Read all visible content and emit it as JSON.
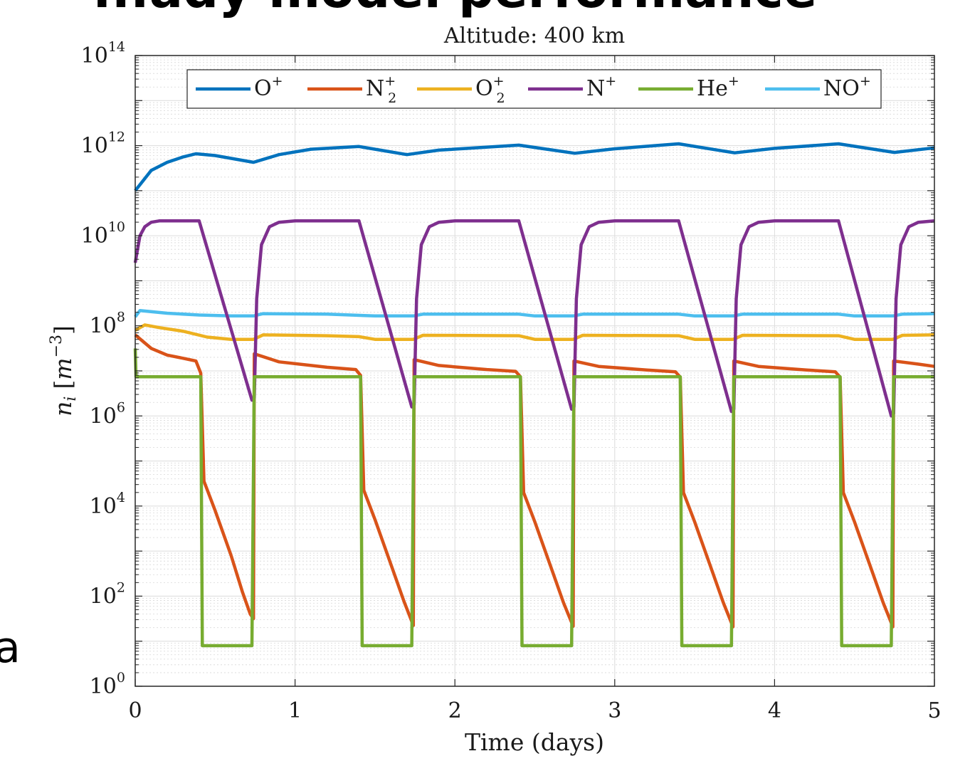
{
  "page": {
    "heading_fragment": "...ady model performance",
    "side_fragment": "a"
  },
  "chart_data": {
    "type": "line",
    "title": "Altitude: 400 km",
    "xlabel": "Time (days)",
    "ylabel": {
      "base": "n",
      "sub": "i",
      "unit_open": "[",
      "unit_base": "m",
      "unit_exp": "−3",
      "unit_close": "]"
    },
    "xlim": [
      0,
      5
    ],
    "ylim_log10": [
      0,
      14
    ],
    "yscale": "log",
    "grid": true,
    "minor_grid": true,
    "legend_position": "top",
    "x_ticks": [
      "0",
      "1",
      "2",
      "3",
      "4",
      "5"
    ],
    "y_ticks": [
      {
        "base": "10",
        "exp": "0"
      },
      {
        "base": "10",
        "exp": "2"
      },
      {
        "base": "10",
        "exp": "4"
      },
      {
        "base": "10",
        "exp": "6"
      },
      {
        "base": "10",
        "exp": "8"
      },
      {
        "base": "10",
        "exp": "10"
      },
      {
        "base": "10",
        "exp": "12"
      },
      {
        "base": "10",
        "exp": "14"
      }
    ],
    "series": [
      {
        "key": "Oplus",
        "color": "#0072BD",
        "label": {
          "base": "O",
          "sub": "",
          "sup": "+"
        },
        "points_log10": [
          [
            0,
            11
          ],
          [
            0.1,
            11.45
          ],
          [
            0.2,
            11.63
          ],
          [
            0.3,
            11.75
          ],
          [
            0.38,
            11.82
          ],
          [
            0.5,
            11.78
          ],
          [
            0.74,
            11.63
          ],
          [
            0.9,
            11.8
          ],
          [
            1.1,
            11.92
          ],
          [
            1.4,
            11.98
          ],
          [
            1.7,
            11.8
          ],
          [
            1.9,
            11.9
          ],
          [
            2.4,
            12.01
          ],
          [
            2.75,
            11.83
          ],
          [
            3.0,
            11.93
          ],
          [
            3.4,
            12.04
          ],
          [
            3.75,
            11.84
          ],
          [
            4.0,
            11.94
          ],
          [
            4.4,
            12.04
          ],
          [
            4.75,
            11.85
          ],
          [
            5,
            11.95
          ]
        ]
      },
      {
        "key": "N2plus",
        "color": "#D95319",
        "label": {
          "base": "N",
          "sub": "2",
          "sup": "+"
        },
        "points_log10": [
          [
            0,
            7.8
          ],
          [
            0.1,
            7.5
          ],
          [
            0.2,
            7.35
          ],
          [
            0.3,
            7.28
          ],
          [
            0.38,
            7.22
          ],
          [
            0.41,
            6.95
          ],
          [
            0.43,
            4.55
          ],
          [
            0.5,
            3.9
          ],
          [
            0.6,
            2.9
          ],
          [
            0.67,
            2.1
          ],
          [
            0.72,
            1.6
          ],
          [
            0.74,
            1.5
          ],
          [
            0.745,
            7.38
          ],
          [
            0.9,
            7.2
          ],
          [
            1.2,
            7.08
          ],
          [
            1.38,
            7.03
          ],
          [
            1.41,
            6.9
          ],
          [
            1.43,
            4.35
          ],
          [
            1.5,
            3.7
          ],
          [
            1.6,
            2.7
          ],
          [
            1.68,
            1.9
          ],
          [
            1.74,
            1.35
          ],
          [
            1.745,
            7.25
          ],
          [
            1.9,
            7.12
          ],
          [
            2.2,
            7.03
          ],
          [
            2.38,
            6.99
          ],
          [
            2.41,
            6.87
          ],
          [
            2.43,
            4.3
          ],
          [
            2.5,
            3.65
          ],
          [
            2.6,
            2.65
          ],
          [
            2.68,
            1.85
          ],
          [
            2.74,
            1.33
          ],
          [
            2.745,
            7.22
          ],
          [
            2.9,
            7.1
          ],
          [
            3.2,
            7.02
          ],
          [
            3.38,
            6.98
          ],
          [
            3.41,
            6.86
          ],
          [
            3.43,
            4.3
          ],
          [
            3.5,
            3.65
          ],
          [
            3.6,
            2.65
          ],
          [
            3.68,
            1.85
          ],
          [
            3.74,
            1.32
          ],
          [
            3.745,
            7.22
          ],
          [
            3.9,
            7.1
          ],
          [
            4.2,
            7.02
          ],
          [
            4.38,
            6.98
          ],
          [
            4.41,
            6.86
          ],
          [
            4.43,
            4.3
          ],
          [
            4.5,
            3.65
          ],
          [
            4.6,
            2.65
          ],
          [
            4.68,
            1.85
          ],
          [
            4.74,
            1.32
          ],
          [
            4.745,
            7.22
          ],
          [
            4.9,
            7.15
          ],
          [
            5,
            7.1
          ]
        ]
      },
      {
        "key": "O2plus",
        "color": "#EDB120",
        "label": {
          "base": "O",
          "sub": "2",
          "sup": "+"
        },
        "points_log10": [
          [
            0,
            7.9
          ],
          [
            0.06,
            8.02
          ],
          [
            0.15,
            7.96
          ],
          [
            0.3,
            7.88
          ],
          [
            0.45,
            7.75
          ],
          [
            0.6,
            7.7
          ],
          [
            0.74,
            7.7
          ],
          [
            0.8,
            7.8
          ],
          [
            1.2,
            7.78
          ],
          [
            1.4,
            7.76
          ],
          [
            1.5,
            7.7
          ],
          [
            1.74,
            7.7
          ],
          [
            1.8,
            7.79
          ],
          [
            2.4,
            7.78
          ],
          [
            2.5,
            7.7
          ],
          [
            2.74,
            7.7
          ],
          [
            2.8,
            7.79
          ],
          [
            3.4,
            7.78
          ],
          [
            3.5,
            7.7
          ],
          [
            3.74,
            7.7
          ],
          [
            3.8,
            7.79
          ],
          [
            4.4,
            7.78
          ],
          [
            4.5,
            7.7
          ],
          [
            4.74,
            7.7
          ],
          [
            4.8,
            7.79
          ],
          [
            5,
            7.8
          ]
        ]
      },
      {
        "key": "Nplus",
        "color": "#7E2F8E",
        "label": {
          "base": "N",
          "sub": "",
          "sup": "+"
        },
        "points_log10": [
          [
            0,
            9.4
          ],
          [
            0.01,
            9.6
          ],
          [
            0.03,
            10.0
          ],
          [
            0.06,
            10.2
          ],
          [
            0.1,
            10.3
          ],
          [
            0.15,
            10.33
          ],
          [
            0.4,
            10.33
          ],
          [
            0.73,
            6.35
          ],
          [
            0.745,
            6.4
          ],
          [
            0.76,
            8.6
          ],
          [
            0.79,
            9.8
          ],
          [
            0.84,
            10.2
          ],
          [
            0.9,
            10.3
          ],
          [
            1.0,
            10.33
          ],
          [
            1.4,
            10.33
          ],
          [
            1.73,
            6.2
          ],
          [
            1.745,
            6.25
          ],
          [
            1.76,
            8.6
          ],
          [
            1.79,
            9.8
          ],
          [
            1.84,
            10.2
          ],
          [
            1.9,
            10.3
          ],
          [
            2.0,
            10.33
          ],
          [
            2.4,
            10.33
          ],
          [
            2.73,
            6.15
          ],
          [
            2.745,
            6.2
          ],
          [
            2.76,
            8.6
          ],
          [
            2.79,
            9.8
          ],
          [
            2.84,
            10.2
          ],
          [
            2.9,
            10.3
          ],
          [
            3.0,
            10.33
          ],
          [
            3.4,
            10.33
          ],
          [
            3.73,
            6.1
          ],
          [
            3.745,
            6.15
          ],
          [
            3.76,
            8.6
          ],
          [
            3.79,
            9.8
          ],
          [
            3.84,
            10.2
          ],
          [
            3.9,
            10.3
          ],
          [
            4.0,
            10.33
          ],
          [
            4.4,
            10.33
          ],
          [
            4.73,
            6.0
          ],
          [
            4.745,
            6.05
          ],
          [
            4.76,
            8.6
          ],
          [
            4.79,
            9.8
          ],
          [
            4.84,
            10.2
          ],
          [
            4.9,
            10.3
          ],
          [
            5,
            10.33
          ]
        ]
      },
      {
        "key": "Heplus",
        "color": "#77AC30",
        "label": {
          "base": "He",
          "sub": "",
          "sup": "+"
        },
        "points_log10": [
          [
            0,
            7.5
          ],
          [
            0.005,
            6.87
          ],
          [
            0.41,
            6.87
          ],
          [
            0.42,
            0.9
          ],
          [
            0.73,
            0.9
          ],
          [
            0.745,
            6.87
          ],
          [
            1.41,
            6.87
          ],
          [
            1.42,
            0.9
          ],
          [
            1.73,
            0.9
          ],
          [
            1.745,
            6.87
          ],
          [
            2.41,
            6.87
          ],
          [
            2.42,
            0.9
          ],
          [
            2.73,
            0.9
          ],
          [
            2.745,
            6.87
          ],
          [
            3.41,
            6.87
          ],
          [
            3.42,
            0.9
          ],
          [
            3.73,
            0.9
          ],
          [
            3.745,
            6.87
          ],
          [
            4.41,
            6.87
          ],
          [
            4.42,
            0.9
          ],
          [
            4.73,
            0.9
          ],
          [
            4.745,
            6.87
          ],
          [
            5,
            6.87
          ]
        ]
      },
      {
        "key": "NOplus",
        "color": "#4DBEEE",
        "label": {
          "base": "NO",
          "sub": "",
          "sup": "+"
        },
        "points_log10": [
          [
            0,
            8.2
          ],
          [
            0.03,
            8.34
          ],
          [
            0.2,
            8.28
          ],
          [
            0.4,
            8.24
          ],
          [
            0.6,
            8.22
          ],
          [
            0.74,
            8.22
          ],
          [
            0.8,
            8.27
          ],
          [
            1.2,
            8.26
          ],
          [
            1.5,
            8.22
          ],
          [
            1.74,
            8.22
          ],
          [
            1.8,
            8.26
          ],
          [
            2.4,
            8.26
          ],
          [
            2.5,
            8.22
          ],
          [
            2.74,
            8.22
          ],
          [
            2.8,
            8.26
          ],
          [
            3.4,
            8.26
          ],
          [
            3.5,
            8.22
          ],
          [
            3.74,
            8.22
          ],
          [
            3.8,
            8.26
          ],
          [
            4.4,
            8.26
          ],
          [
            4.5,
            8.22
          ],
          [
            4.74,
            8.22
          ],
          [
            4.8,
            8.26
          ],
          [
            5,
            8.27
          ]
        ]
      }
    ]
  }
}
